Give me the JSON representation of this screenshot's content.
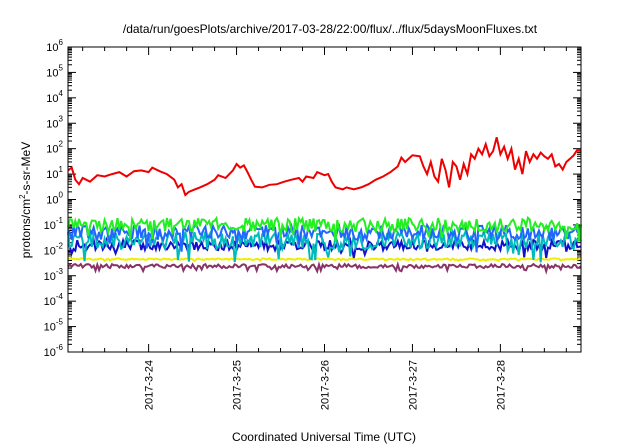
{
  "chart_data": {
    "type": "line",
    "title": "/data/run/goesPlots/archive/2017-03-28/22:00/flux/../flux/5daysMoonFluxes.txt",
    "xlabel": "Coordinated Universal Time (UTC)",
    "ylabel": {
      "before": "protons/cm",
      "sup": "2",
      "after": "-s-sr-MeV"
    },
    "yscale": "log",
    "ylim_exponents": [
      -6,
      6
    ],
    "y_tick_base": "10",
    "y_ticks": [
      "-6",
      "-5",
      "-4",
      "-3",
      "-2",
      "-1",
      "0",
      "1",
      "2",
      "3",
      "4",
      "5",
      "6"
    ],
    "xlim": [
      "2017-03-23T02:00",
      "2017-03-28T22:00"
    ],
    "x_ticks": [
      {
        "label": "2017-3-24",
        "time": "2017-03-24T00:00"
      },
      {
        "label": "2017-3-25",
        "time": "2017-03-25T00:00"
      },
      {
        "label": "2017-3-26",
        "time": "2017-03-26T00:00"
      },
      {
        "label": "2017-3-27",
        "time": "2017-03-27T00:00"
      },
      {
        "label": "2017-3-28",
        "time": "2017-03-28T00:00"
      }
    ],
    "grid": false,
    "legend": "none",
    "series": [
      {
        "color": "#ee0000",
        "points": [
          [
            "2017-03-23T02:00",
            14
          ],
          [
            "2017-03-23T03:00",
            18
          ],
          [
            "2017-03-23T04:00",
            6
          ],
          [
            "2017-03-23T05:00",
            4
          ],
          [
            "2017-03-23T06:00",
            7
          ],
          [
            "2017-03-23T08:00",
            5
          ],
          [
            "2017-03-23T10:00",
            9
          ],
          [
            "2017-03-23T12:00",
            8
          ],
          [
            "2017-03-23T14:00",
            10
          ],
          [
            "2017-03-23T16:00",
            12
          ],
          [
            "2017-03-23T18:00",
            8
          ],
          [
            "2017-03-23T20:00",
            13
          ],
          [
            "2017-03-23T22:00",
            14
          ],
          [
            "2017-03-24T00:00",
            12
          ],
          [
            "2017-03-24T01:00",
            18
          ],
          [
            "2017-03-24T03:00",
            13
          ],
          [
            "2017-03-24T05:00",
            10
          ],
          [
            "2017-03-24T07:00",
            6
          ],
          [
            "2017-03-24T08:00",
            3
          ],
          [
            "2017-03-24T09:00",
            4
          ],
          [
            "2017-03-24T10:00",
            1.5
          ],
          [
            "2017-03-24T11:00",
            2
          ],
          [
            "2017-03-24T12:00",
            2.3
          ],
          [
            "2017-03-24T14:00",
            3
          ],
          [
            "2017-03-24T16:00",
            4
          ],
          [
            "2017-03-24T18:00",
            6
          ],
          [
            "2017-03-24T19:00",
            9
          ],
          [
            "2017-03-24T21:00",
            7
          ],
          [
            "2017-03-24T23:00",
            14
          ],
          [
            "2017-03-25T00:00",
            25
          ],
          [
            "2017-03-25T01:00",
            18
          ],
          [
            "2017-03-25T02:00",
            22
          ],
          [
            "2017-03-25T03:00",
            12
          ],
          [
            "2017-03-25T04:00",
            6
          ],
          [
            "2017-03-25T05:00",
            3.2
          ],
          [
            "2017-03-25T07:00",
            3
          ],
          [
            "2017-03-25T09:00",
            3.8
          ],
          [
            "2017-03-25T11:00",
            4
          ],
          [
            "2017-03-25T13:00",
            5
          ],
          [
            "2017-03-25T15:00",
            6
          ],
          [
            "2017-03-25T17:00",
            7
          ],
          [
            "2017-03-25T18:00",
            5
          ],
          [
            "2017-03-25T19:00",
            8
          ],
          [
            "2017-03-25T21:00",
            7
          ],
          [
            "2017-03-25T22:00",
            12
          ],
          [
            "2017-03-26T00:00",
            9
          ],
          [
            "2017-03-26T01:00",
            10
          ],
          [
            "2017-03-26T02:00",
            5
          ],
          [
            "2017-03-26T03:00",
            3
          ],
          [
            "2017-03-26T05:00",
            2.5
          ],
          [
            "2017-03-26T06:00",
            3
          ],
          [
            "2017-03-26T08:00",
            2.5
          ],
          [
            "2017-03-26T10:00",
            3
          ],
          [
            "2017-03-26T12:00",
            4
          ],
          [
            "2017-03-26T14:00",
            6
          ],
          [
            "2017-03-26T16:00",
            8
          ],
          [
            "2017-03-26T18:00",
            12
          ],
          [
            "2017-03-26T20:00",
            20
          ],
          [
            "2017-03-26T21:00",
            45
          ],
          [
            "2017-03-26T22:00",
            30
          ],
          [
            "2017-03-27T00:00",
            55
          ],
          [
            "2017-03-27T02:00",
            50
          ],
          [
            "2017-03-27T03:00",
            20
          ],
          [
            "2017-03-27T04:00",
            10
          ],
          [
            "2017-03-27T05:00",
            30
          ],
          [
            "2017-03-27T06:00",
            8
          ],
          [
            "2017-03-27T07:00",
            5
          ],
          [
            "2017-03-27T08:00",
            40
          ],
          [
            "2017-03-27T09:00",
            15
          ],
          [
            "2017-03-27T10:00",
            3
          ],
          [
            "2017-03-27T11:00",
            30
          ],
          [
            "2017-03-27T12:00",
            20
          ],
          [
            "2017-03-27T13:00",
            6
          ],
          [
            "2017-03-27T14:00",
            25
          ],
          [
            "2017-03-27T15:00",
            10
          ],
          [
            "2017-03-27T16:00",
            60
          ],
          [
            "2017-03-27T17:00",
            40
          ],
          [
            "2017-03-27T18:00",
            100
          ],
          [
            "2017-03-27T19:00",
            60
          ],
          [
            "2017-03-27T20:00",
            150
          ],
          [
            "2017-03-27T21:00",
            50
          ],
          [
            "2017-03-27T22:00",
            80
          ],
          [
            "2017-03-27T23:00",
            280
          ],
          [
            "2017-03-28T00:00",
            60
          ],
          [
            "2017-03-28T01:00",
            120
          ],
          [
            "2017-03-28T02:00",
            40
          ],
          [
            "2017-03-28T03:00",
            100
          ],
          [
            "2017-03-28T04:00",
            15
          ],
          [
            "2017-03-28T05:00",
            40
          ],
          [
            "2017-03-28T06:00",
            10
          ],
          [
            "2017-03-28T07:00",
            80
          ],
          [
            "2017-03-28T08:00",
            30
          ],
          [
            "2017-03-28T09:00",
            60
          ],
          [
            "2017-03-28T10:00",
            40
          ],
          [
            "2017-03-28T11:00",
            70
          ],
          [
            "2017-03-28T12:00",
            50
          ],
          [
            "2017-03-28T13:00",
            40
          ],
          [
            "2017-03-28T14:00",
            60
          ],
          [
            "2017-03-28T15:00",
            20
          ],
          [
            "2017-03-28T16:00",
            25
          ],
          [
            "2017-03-28T17:00",
            15
          ],
          [
            "2017-03-28T18:00",
            30
          ],
          [
            "2017-03-28T19:00",
            40
          ],
          [
            "2017-03-28T20:00",
            55
          ],
          [
            "2017-03-28T21:00",
            90
          ],
          [
            "2017-03-28T22:00",
            80
          ]
        ]
      },
      {
        "color": "#22ee22",
        "base": 0.1,
        "amp": 0.28,
        "seed": 3
      },
      {
        "color": "#2266ff",
        "base": 0.05,
        "amp": 0.3,
        "seed": 7
      },
      {
        "color": "#00bbbb",
        "base": 0.025,
        "amp": 0.35,
        "seed": 11
      },
      {
        "color": "#1111cc",
        "base": 0.016,
        "amp": 0.2,
        "seed": 19
      },
      {
        "color": "#eeee00",
        "base": 0.0045,
        "amp": 0.03,
        "seed": 23
      },
      {
        "color": "#883366",
        "base": 0.0024,
        "amp": 0.08,
        "seed": 29
      }
    ]
  }
}
